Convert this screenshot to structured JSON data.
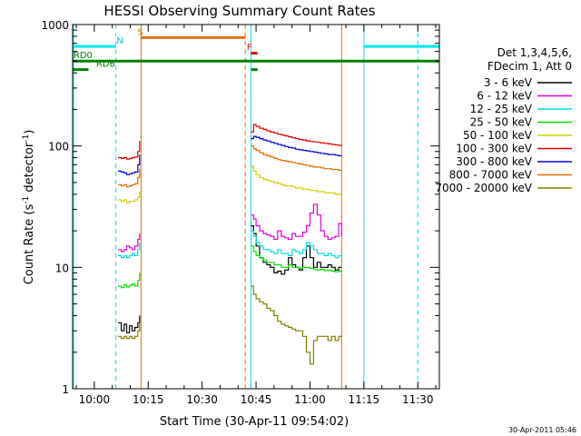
{
  "chart_data": {
    "type": "line",
    "title": "HESSI Observing Summary Count Rates",
    "xlabel": "Start Time (30-Apr-11 09:54:02)",
    "ylabel_main": "Count Rate (s",
    "ylabel_sup1": "-1",
    "ylabel_mid": " detector",
    "ylabel_sup2": "-1",
    "ylabel_end": ")",
    "yscale": "log",
    "ylim": [
      1,
      1000
    ],
    "xlim_minutes": [
      -6.03,
      96.0
    ],
    "x_ticks": [
      {
        "label": "10:00",
        "m": 0
      },
      {
        "label": "10:15",
        "m": 15
      },
      {
        "label": "10:30",
        "m": 30
      },
      {
        "label": "10:45",
        "m": 45
      },
      {
        "label": "11:00",
        "m": 60
      },
      {
        "label": "11:15",
        "m": 75
      },
      {
        "label": "11:30",
        "m": 90
      }
    ],
    "y_ticks": [
      {
        "label": "1",
        "v": 1
      },
      {
        "label": "10",
        "v": 10
      },
      {
        "label": "100",
        "v": 100
      },
      {
        "label": "1000",
        "v": 1000
      }
    ],
    "legend_header": [
      "Det 1,3,4,5,6,",
      "FDecim 1, Att 0"
    ],
    "timestamp": "30-Apr-2011 05:46",
    "series": [
      {
        "name": "3 - 6 keV",
        "color": "#000000",
        "segments": [
          {
            "x": [
              6.6,
              7.5,
              8.3,
              9.0,
              9.8,
              10.5,
              11.3,
              12.1,
              12.6
            ],
            "y": [
              3.5,
              3.0,
              3.4,
              2.9,
              3.3,
              3.0,
              3.2,
              3.5,
              4.0
            ]
          },
          {
            "x": [
              43.6,
              44.3,
              45.0,
              46.0,
              47.0,
              48.0,
              49.0,
              50.0,
              51.0,
              52.0,
              53.0,
              54.0,
              55.0,
              56.0,
              57.0,
              58.0,
              59.0,
              60.0,
              61.0,
              62.0,
              63.0,
              64.0,
              65.0,
              66.0,
              67.0,
              68.0,
              68.8
            ],
            "y": [
              22,
              19,
              15,
              12,
              11,
              10.5,
              10,
              9,
              9.3,
              8.8,
              9.5,
              12,
              10.5,
              10,
              9.5,
              12,
              15,
              12,
              10,
              11,
              10,
              10,
              10.5,
              10,
              9.5,
              10,
              10
            ]
          }
        ]
      },
      {
        "name": "6 - 12 keV",
        "color": "#e000e0",
        "segments": [
          {
            "x": [
              6.6,
              7.5,
              8.3,
              9.0,
              9.8,
              10.5,
              11.3,
              12.1,
              12.6
            ],
            "y": [
              14,
              13.5,
              14,
              15,
              14.5,
              14,
              15,
              17,
              19
            ]
          },
          {
            "x": [
              43.6,
              44.3,
              45.0,
              46.0,
              47.0,
              48.0,
              49.0,
              50.0,
              51.0,
              52.0,
              53.0,
              54.0,
              55.0,
              56.0,
              57.0,
              58.0,
              59.0,
              60.0,
              61.0,
              62.0,
              63.0,
              64.0,
              65.0,
              66.0,
              67.0,
              68.0,
              68.8
            ],
            "y": [
              27,
              25,
              22,
              20,
              19,
              18.5,
              18,
              17,
              20,
              18,
              17.5,
              17,
              19,
              18,
              18,
              19.5,
              22,
              28,
              33,
              27,
              20,
              18,
              17,
              17.5,
              18,
              23,
              18
            ]
          }
        ]
      },
      {
        "name": "12 - 25 keV",
        "color": "#00e0e0",
        "segments": [
          {
            "x": [
              6.6,
              7.5,
              8.3,
              9.0,
              9.8,
              10.5,
              11.3,
              12.1,
              12.6
            ],
            "y": [
              12.5,
              12,
              12.5,
              12,
              12.5,
              13,
              12.5,
              14,
              16
            ]
          },
          {
            "x": [
              43.6,
              44.3,
              45.0,
              46.0,
              47.0,
              48.0,
              49.0,
              50.0,
              51.0,
              52.0,
              53.0,
              54.0,
              55.0,
              56.0,
              57.0,
              58.0,
              59.0,
              60.0,
              61.0,
              62.0,
              63.0,
              64.0,
              65.0,
              66.0,
              67.0,
              68.0,
              68.8
            ],
            "y": [
              20,
              18,
              16,
              15,
              14,
              14,
              13.5,
              13,
              14,
              13,
              13,
              12.5,
              14,
              13.5,
              13,
              14,
              16,
              15,
              14,
              13,
              13,
              12.5,
              13,
              12.5,
              12,
              12.5,
              12
            ]
          }
        ]
      },
      {
        "name": "25 - 50 keV",
        "color": "#00e000",
        "segments": [
          {
            "x": [
              6.6,
              7.5,
              8.3,
              9.0,
              9.8,
              10.5,
              11.3,
              12.1,
              12.6
            ],
            "y": [
              7,
              6.8,
              7.2,
              6.9,
              7.1,
              7.3,
              7.0,
              7.8,
              9
            ]
          },
          {
            "x": [
              43.6,
              44.3,
              45.0,
              46.0,
              47.0,
              48.0,
              49.0,
              50.0,
              51.0,
              52.0,
              53.0,
              54.0,
              55.0,
              56.0,
              57.0,
              58.0,
              59.0,
              60.0,
              61.0,
              62.0,
              63.0,
              64.0,
              65.0,
              66.0,
              67.0,
              68.0,
              68.8
            ],
            "y": [
              15,
              13.5,
              12.5,
              12,
              11.5,
              11,
              11,
              10.5,
              10.5,
              10,
              10,
              10.5,
              10,
              10,
              9.8,
              10,
              10,
              9.8,
              9.6,
              9.5,
              9.6,
              9.4,
              9.5,
              9.3,
              9.2,
              9.3,
              9.2
            ]
          }
        ]
      },
      {
        "name": "50 - 100 keV",
        "color": "#d0d000",
        "segments": [
          {
            "x": [
              6.6,
              7.5,
              8.3,
              9.0,
              9.8,
              10.5,
              11.3,
              12.1,
              12.6
            ],
            "y": [
              36,
              35,
              36,
              34,
              35,
              35,
              36,
              38,
              42
            ]
          },
          {
            "x": [
              43.6,
              44.3,
              45.0,
              46.0,
              47.0,
              48.0,
              49.0,
              50.0,
              51.0,
              52.0,
              53.0,
              54.0,
              55.0,
              56.0,
              57.0,
              58.0,
              59.0,
              60.0,
              61.0,
              62.0,
              63.0,
              64.0,
              65.0,
              66.0,
              67.0,
              68.0,
              68.8
            ],
            "y": [
              68,
              62,
              58,
              55,
              53,
              52,
              51,
              50,
              49,
              48,
              47,
              47,
              46,
              45,
              45,
              44,
              44,
              43,
              43,
              42,
              42,
              41,
              41,
              41,
              40,
              40,
              40
            ]
          }
        ]
      },
      {
        "name": "100 - 300 keV",
        "color": "#e00000",
        "segments": [
          {
            "x": [
              6.6,
              7.5,
              8.3,
              9.0,
              9.8,
              10.5,
              11.3,
              12.1,
              12.6
            ],
            "y": [
              80,
              79,
              80,
              78,
              79,
              80,
              81,
              90,
              110
            ]
          },
          {
            "x": [
              43.6,
              44.3,
              45.0,
              46.0,
              47.0,
              48.0,
              49.0,
              50.0,
              51.0,
              52.0,
              53.0,
              54.0,
              55.0,
              56.0,
              57.0,
              58.0,
              59.0,
              60.0,
              61.0,
              62.0,
              63.0,
              64.0,
              65.0,
              66.0,
              67.0,
              68.0,
              68.8
            ],
            "y": [
              130,
              150,
              145,
              140,
              137,
              133,
              130,
              128,
              125,
              123,
              121,
              119,
              117,
              115,
              113,
              112,
              110,
              109,
              108,
              107,
              106,
              105,
              104,
              103,
              102,
              101,
              100
            ]
          }
        ]
      },
      {
        "name": "300 - 800 keV",
        "color": "#0000e0",
        "segments": [
          {
            "x": [
              6.6,
              7.5,
              8.3,
              9.0,
              9.8,
              10.5,
              11.3,
              12.1,
              12.6
            ],
            "y": [
              62,
              61,
              60,
              58,
              59,
              60,
              61,
              70,
              85
            ]
          },
          {
            "x": [
              43.6,
              44.3,
              45.0,
              46.0,
              47.0,
              48.0,
              49.0,
              50.0,
              51.0,
              52.0,
              53.0,
              54.0,
              55.0,
              56.0,
              57.0,
              58.0,
              59.0,
              60.0,
              61.0,
              62.0,
              63.0,
              64.0,
              65.0,
              66.0,
              67.0,
              68.0,
              68.8
            ],
            "y": [
              115,
              120,
              118,
              115,
              112,
              110,
              107,
              105,
              103,
              101,
              99,
              97,
              96,
              94,
              93,
              92,
              91,
              90,
              89,
              88,
              87,
              86,
              85,
              85,
              84,
              83,
              83
            ]
          }
        ]
      },
      {
        "name": "800 - 7000 keV",
        "color": "#e07000",
        "segments": [
          {
            "x": [
              6.6,
              7.5,
              8.3,
              9.0,
              9.8,
              10.5,
              11.3,
              12.1,
              12.6
            ],
            "y": [
              48,
              47,
              48,
              46,
              47,
              48,
              49,
              55,
              65
            ]
          },
          {
            "x": [
              43.6,
              44.3,
              45.0,
              46.0,
              47.0,
              48.0,
              49.0,
              50.0,
              51.0,
              52.0,
              53.0,
              54.0,
              55.0,
              56.0,
              57.0,
              58.0,
              59.0,
              60.0,
              61.0,
              62.0,
              63.0,
              64.0,
              65.0,
              66.0,
              67.0,
              68.0,
              68.8
            ],
            "y": [
              100,
              95,
              92,
              88,
              85,
              83,
              81,
              79,
              77,
              76,
              75,
              74,
              73,
              72,
              71,
              70,
              69,
              68,
              67,
              67,
              66,
              65,
              65,
              64,
              64,
              63,
              63
            ]
          }
        ]
      },
      {
        "name": "7000 - 20000 keV",
        "color": "#808000",
        "segments": [
          {
            "x": [
              6.6,
              7.5,
              8.3,
              9.0,
              9.8,
              10.5,
              11.3,
              12.1,
              12.6
            ],
            "y": [
              2.7,
              2.6,
              2.7,
              2.6,
              2.7,
              2.6,
              2.7,
              3.0,
              3.5
            ]
          },
          {
            "x": [
              43.6,
              44.3,
              45.0,
              46.0,
              47.0,
              48.0,
              49.0,
              50.0,
              51.0,
              52.0,
              53.0,
              54.0,
              55.0,
              56.0,
              57.0,
              58.0,
              59.0,
              60.0,
              61.0,
              62.0,
              63.0,
              64.0,
              65.0,
              66.0,
              67.0,
              68.0,
              68.8
            ],
            "y": [
              7,
              6,
              5.5,
              5.2,
              5.0,
              4.6,
              4.4,
              4.0,
              3.6,
              3.4,
              3.3,
              3.2,
              3.1,
              3.0,
              3.0,
              2.7,
              2.0,
              1.6,
              2.5,
              2.7,
              2.7,
              2.7,
              2.5,
              2.7,
              2.5,
              2.7,
              2.6
            ]
          }
        ]
      }
    ],
    "status_bars": [
      {
        "label": "N",
        "label_color": "#00c8c8",
        "color": "#00e8f0",
        "v": 660,
        "x0": -6.03,
        "x1": 6.0,
        "label_at": 6.2
      },
      {
        "label": "N",
        "label_color": "#00c8c8",
        "color": "#00e8f0",
        "v": 660,
        "x0": 75.0,
        "x1": 96.0,
        "label_at": null
      },
      {
        "label": "S",
        "label_color": "#e07000",
        "color": "#e07000",
        "v": 780,
        "x0": 13.0,
        "x1": 42.0,
        "label_at": 12.0
      },
      {
        "label": "F",
        "label_color": "#e00000",
        "color": "#e00000",
        "v": 580,
        "x0": 43.6,
        "x1": 45.4,
        "label_at": 42.4
      },
      {
        "label": "RD0",
        "label_color": "#008000",
        "color": "#008000",
        "v": 500,
        "x0": -6.03,
        "x1": 96.0,
        "label_at": -5.8
      },
      {
        "label": "RD6",
        "label_color": "#008000",
        "color": "#008000",
        "v": 425,
        "x0": -6.03,
        "x1": -1.6,
        "label_at": 0.5
      },
      {
        "label": "",
        "label_color": "#008000",
        "color": "#008000",
        "v": 425,
        "x0": 43.6,
        "x1": 45.4,
        "label_at": null
      }
    ],
    "vlines": [
      {
        "m": -5.8,
        "color": "#00e8f0",
        "dash": false
      },
      {
        "m": 6.0,
        "color": "#00e8f0",
        "dash": true
      },
      {
        "m": 13.0,
        "color": "#e07000",
        "dash": false
      },
      {
        "m": 42.0,
        "color": "#e07000",
        "dash": true
      },
      {
        "m": 43.6,
        "color": "#00e8f0",
        "dash": false
      },
      {
        "m": 68.8,
        "color": "#e07000",
        "dash": false
      },
      {
        "m": 75.0,
        "color": "#00e8f0",
        "dash": false
      },
      {
        "m": 90.0,
        "color": "#00e8f0",
        "dash": true
      }
    ]
  }
}
